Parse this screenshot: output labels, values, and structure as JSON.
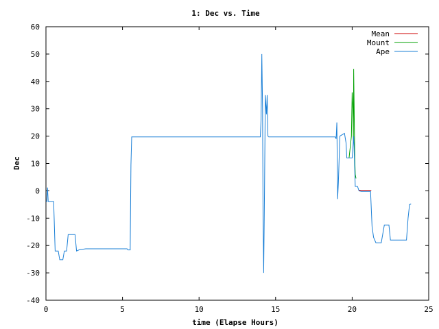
{
  "chart_data": {
    "type": "line",
    "title": "1: Dec vs. Time",
    "xlabel": "time (Elapse Hours)",
    "ylabel": "Dec",
    "xlim": [
      0,
      25
    ],
    "ylim": [
      -40,
      60
    ],
    "xticks": [
      0,
      5,
      10,
      15,
      20,
      25
    ],
    "yticks": [
      -40,
      -30,
      -20,
      -10,
      0,
      10,
      20,
      30,
      40,
      50,
      60
    ],
    "grid": false,
    "legend_position": "top-right",
    "series": [
      {
        "name": "Mean",
        "color": "#cc0000",
        "points": [
          [
            20.45,
            0.2
          ],
          [
            21.25,
            0.2
          ]
        ]
      },
      {
        "name": "Mount",
        "color": "#00a000",
        "points": [
          [
            19.8,
            12
          ],
          [
            19.95,
            20
          ],
          [
            20.0,
            36
          ],
          [
            20.05,
            30
          ],
          [
            20.08,
            18
          ],
          [
            20.1,
            44.5
          ],
          [
            20.13,
            30
          ],
          [
            20.17,
            12
          ],
          [
            20.2,
            6
          ],
          [
            20.25,
            4.5
          ]
        ]
      },
      {
        "name": "Ape",
        "color": "#1a7fd6",
        "points": [
          [
            0.0,
            -4
          ],
          [
            0.05,
            -4
          ],
          [
            0.1,
            1.2
          ],
          [
            0.15,
            -3.9
          ],
          [
            0.5,
            -3.9
          ],
          [
            0.6,
            -22
          ],
          [
            0.8,
            -22
          ],
          [
            0.9,
            -25.2
          ],
          [
            1.1,
            -25.2
          ],
          [
            1.2,
            -22
          ],
          [
            1.35,
            -22
          ],
          [
            1.45,
            -16
          ],
          [
            1.9,
            -16
          ],
          [
            2.0,
            -22
          ],
          [
            2.2,
            -21.5
          ],
          [
            2.6,
            -21.2
          ],
          [
            5.3,
            -21.2
          ],
          [
            5.35,
            -21.6
          ],
          [
            5.5,
            -21.6
          ],
          [
            5.55,
            9.5
          ],
          [
            5.6,
            19.7
          ],
          [
            14.0,
            19.7
          ],
          [
            14.05,
            26
          ],
          [
            14.1,
            50
          ],
          [
            14.15,
            30
          ],
          [
            14.18,
            -10
          ],
          [
            14.22,
            -30
          ],
          [
            14.28,
            2
          ],
          [
            14.33,
            35
          ],
          [
            14.4,
            28
          ],
          [
            14.45,
            35
          ],
          [
            14.5,
            20
          ],
          [
            14.55,
            19.7
          ],
          [
            18.9,
            19.7
          ],
          [
            18.95,
            19
          ],
          [
            19.0,
            25
          ],
          [
            19.05,
            -3
          ],
          [
            19.1,
            3
          ],
          [
            19.2,
            20
          ],
          [
            19.5,
            21
          ],
          [
            19.6,
            17.5
          ],
          [
            19.65,
            12
          ],
          [
            20.0,
            12
          ],
          [
            20.05,
            16
          ],
          [
            20.1,
            20
          ],
          [
            20.15,
            12
          ],
          [
            20.2,
            1.6
          ],
          [
            20.35,
            1.6
          ],
          [
            20.45,
            0
          ],
          [
            20.6,
            -0.2
          ],
          [
            21.1,
            -0.2
          ],
          [
            21.2,
            -0.2
          ],
          [
            21.3,
            -13
          ],
          [
            21.4,
            -17
          ],
          [
            21.55,
            -19
          ],
          [
            21.9,
            -19
          ],
          [
            22.1,
            -12.5
          ],
          [
            22.4,
            -12.5
          ],
          [
            22.5,
            -18
          ],
          [
            23.55,
            -18
          ],
          [
            23.65,
            -10
          ],
          [
            23.75,
            -5
          ],
          [
            23.85,
            -4.8
          ]
        ]
      }
    ]
  }
}
